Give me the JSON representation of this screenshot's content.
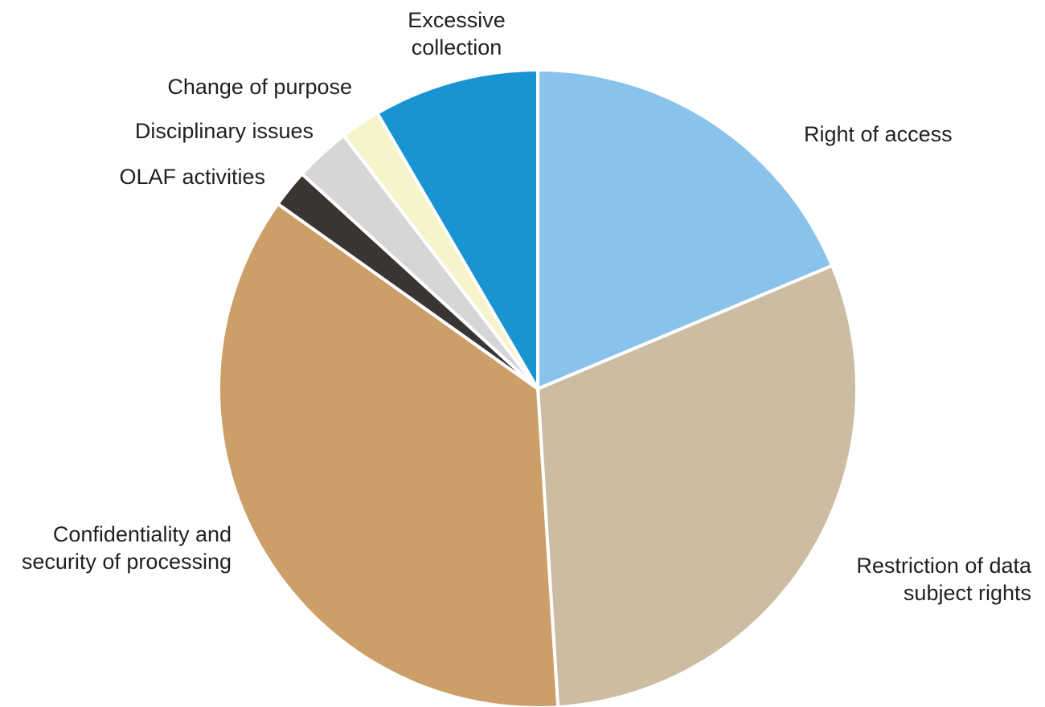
{
  "chart_data": {
    "type": "pie",
    "title": "",
    "unit": "%",
    "start": "12 o'clock",
    "direction": "clockwise",
    "slice_border_color": "#ffffff",
    "slices": [
      {
        "label": [
          "Right of access"
        ],
        "value": 18.5,
        "color": "#89c2ea"
      },
      {
        "label": [
          "Restriction of data",
          "subject rights"
        ],
        "value": 30.0,
        "color": "#cbbca2"
      },
      {
        "label": [
          "Confidentiality and",
          "security of processing"
        ],
        "value": 35.5,
        "color": "#cc9f69"
      },
      {
        "label": [
          "OLAF activities"
        ],
        "value": 1.9,
        "color": "#3a3533"
      },
      {
        "label": [
          "Disciplinary issues"
        ],
        "value": 2.8,
        "color": "#d6d6d6"
      },
      {
        "label": [
          "Change of purpose"
        ],
        "value": 2.0,
        "color": "#f7f3cb"
      },
      {
        "label": [
          "Excessive",
          "collection"
        ],
        "value": 8.3,
        "color": "#1a93d2"
      }
    ]
  }
}
